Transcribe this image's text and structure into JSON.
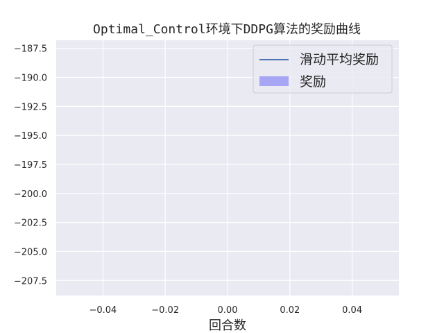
{
  "chart_data": {
    "type": "line",
    "title": "Optimal_Control环境下DDPG算法的奖励曲线",
    "xlabel": "回合数",
    "ylabel": "",
    "xlim": [
      -0.055,
      0.055
    ],
    "ylim": [
      -208.8,
      -186.8
    ],
    "x_ticks": [
      -0.04,
      -0.02,
      0.0,
      0.02,
      0.04
    ],
    "x_tick_labels": [
      "−0.04",
      "−0.02",
      "0.00",
      "0.02",
      "0.04"
    ],
    "y_ticks": [
      -187.5,
      -190.0,
      -192.5,
      -195.0,
      -197.5,
      -200.0,
      -202.5,
      -205.0,
      -207.5
    ],
    "y_tick_labels": [
      "−187.5",
      "−190.0",
      "−192.5",
      "−195.0",
      "−197.5",
      "−200.0",
      "−202.5",
      "−205.0",
      "−207.5"
    ],
    "grid": true,
    "legend_position": "top-right",
    "series": [
      {
        "name": "滑动平均奖励",
        "kind": "line",
        "color": "#4c72b0",
        "x": [],
        "y": []
      },
      {
        "name": "奖励",
        "kind": "area",
        "color": "#a6a6f5",
        "x": [],
        "y": []
      }
    ],
    "colors": {
      "plot_background": "#eaeaf2",
      "grid": "#ffffff"
    }
  }
}
